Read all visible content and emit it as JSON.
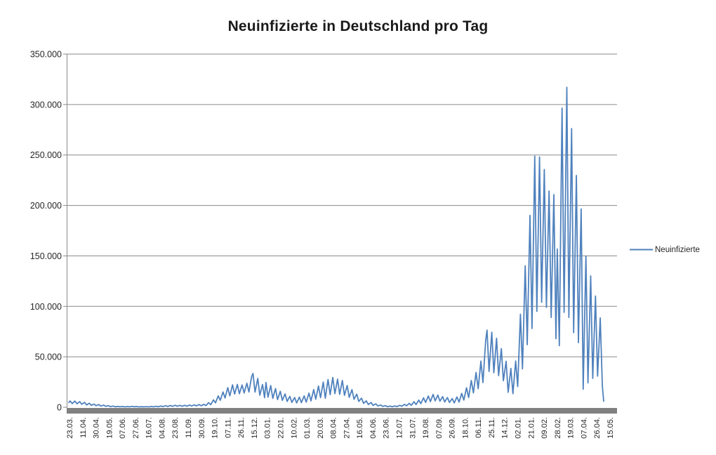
{
  "title": "Neuinfizierte in Deutschland pro Tag",
  "legend": {
    "label": "Neuinfizierte"
  },
  "colors": {
    "series_line": "#4F81BD",
    "gridline": "#8A8A8A",
    "axis_line": "#8A8A8A",
    "axis_bottom_bar": "#808080",
    "title_text": "#1a1a1a",
    "tick_text": "#262626"
  },
  "chart_data": {
    "type": "line",
    "title": "Neuinfizierte in Deutschland pro Tag",
    "ylim": [
      0,
      350000
    ],
    "grid": "horizontal-only",
    "legend_position": "right-middle",
    "y_axis": {
      "tick_values": [
        0,
        50000,
        100000,
        150000,
        200000,
        250000,
        300000,
        350000
      ],
      "tick_labels": [
        "0",
        "50.000",
        "100.000",
        "150.000",
        "200.000",
        "250.000",
        "300.000",
        "350.000"
      ]
    },
    "x_axis": {
      "tick_labels": [
        "23.03.",
        "11.04.",
        "30.04.",
        "19.05.",
        "07.06.",
        "27.06.",
        "16.07.",
        "04.08.",
        "23.08.",
        "11.09.",
        "30.09.",
        "19.10.",
        "07.11.",
        "26.11.",
        "15.12.",
        "03.01.",
        "22.01.",
        "10.02.",
        "01.03.",
        "20.03.",
        "08.04.",
        "27.04.",
        "16.05.",
        "04.06.",
        "23.06.",
        "12.07.",
        "31.07.",
        "19.08.",
        "07.09.",
        "26.09.",
        "18.10.",
        "06.11.",
        "25.11.",
        "14.12.",
        "02.01.",
        "21.01.",
        "09.02.",
        "28.02.",
        "19.03.",
        "07.04.",
        "26.04.",
        "15.05."
      ],
      "first_category": "23.03.",
      "last_category": "15.05.",
      "span_days": 784
    },
    "sampling": "irregular ~3-4 day envelope samples (weekly peaks and troughs); first number = day offset from 23.03.2020, second = daily new infections",
    "series": [
      {
        "name": "Neuinfizierte",
        "color": "#4F81BD",
        "points_day_value": [
          [
            0,
            4700
          ],
          [
            2,
            6200
          ],
          [
            5,
            3600
          ],
          [
            9,
            6100
          ],
          [
            12,
            3400
          ],
          [
            16,
            5600
          ],
          [
            19,
            2900
          ],
          [
            23,
            4900
          ],
          [
            26,
            2300
          ],
          [
            30,
            4000
          ],
          [
            33,
            1900
          ],
          [
            37,
            3200
          ],
          [
            40,
            1500
          ],
          [
            44,
            2700
          ],
          [
            47,
            1200
          ],
          [
            51,
            2100
          ],
          [
            54,
            950
          ],
          [
            58,
            1600
          ],
          [
            61,
            650
          ],
          [
            65,
            1150
          ],
          [
            68,
            520
          ],
          [
            72,
            850
          ],
          [
            75,
            420
          ],
          [
            79,
            780
          ],
          [
            82,
            380
          ],
          [
            86,
            720
          ],
          [
            89,
            420
          ],
          [
            93,
            880
          ],
          [
            96,
            460
          ],
          [
            100,
            700
          ],
          [
            103,
            360
          ],
          [
            107,
            560
          ],
          [
            110,
            320
          ],
          [
            114,
            620
          ],
          [
            117,
            380
          ],
          [
            121,
            780
          ],
          [
            124,
            420
          ],
          [
            128,
            950
          ],
          [
            131,
            520
          ],
          [
            135,
            1250
          ],
          [
            138,
            680
          ],
          [
            142,
            1500
          ],
          [
            145,
            780
          ],
          [
            149,
            1750
          ],
          [
            152,
            920
          ],
          [
            156,
            1950
          ],
          [
            159,
            1020
          ],
          [
            163,
            1850
          ],
          [
            166,
            970
          ],
          [
            170,
            1950
          ],
          [
            173,
            1050
          ],
          [
            177,
            2250
          ],
          [
            180,
            1250
          ],
          [
            184,
            2350
          ],
          [
            187,
            1350
          ],
          [
            191,
            2650
          ],
          [
            194,
            1450
          ],
          [
            198,
            2950
          ],
          [
            201,
            1700
          ],
          [
            205,
            4600
          ],
          [
            208,
            2600
          ],
          [
            212,
            7300
          ],
          [
            215,
            4400
          ],
          [
            219,
            11300
          ],
          [
            222,
            6900
          ],
          [
            226,
            15200
          ],
          [
            229,
            9200
          ],
          [
            233,
            19400
          ],
          [
            236,
            11300
          ],
          [
            240,
            22200
          ],
          [
            243,
            13100
          ],
          [
            247,
            22600
          ],
          [
            250,
            13400
          ],
          [
            254,
            22050
          ],
          [
            257,
            14200
          ],
          [
            261,
            23700
          ],
          [
            264,
            15100
          ],
          [
            268,
            30500
          ],
          [
            270,
            33500
          ],
          [
            273,
            15000
          ],
          [
            277,
            28500
          ],
          [
            280,
            12000
          ],
          [
            284,
            22500
          ],
          [
            287,
            9500
          ],
          [
            289,
            24500
          ],
          [
            292,
            10000
          ],
          [
            296,
            21500
          ],
          [
            299,
            8800
          ],
          [
            303,
            18500
          ],
          [
            306,
            7600
          ],
          [
            310,
            15800
          ],
          [
            313,
            6800
          ],
          [
            317,
            13200
          ],
          [
            320,
            5800
          ],
          [
            324,
            10800
          ],
          [
            327,
            4800
          ],
          [
            331,
            9700
          ],
          [
            334,
            4300
          ],
          [
            338,
            10000
          ],
          [
            341,
            4600
          ],
          [
            345,
            11300
          ],
          [
            348,
            5100
          ],
          [
            352,
            14000
          ],
          [
            355,
            6300
          ],
          [
            359,
            17500
          ],
          [
            362,
            7900
          ],
          [
            366,
            21000
          ],
          [
            369,
            9500
          ],
          [
            373,
            25000
          ],
          [
            376,
            9000
          ],
          [
            380,
            27500
          ],
          [
            383,
            12500
          ],
          [
            387,
            29500
          ],
          [
            390,
            13500
          ],
          [
            394,
            27800
          ],
          [
            397,
            12800
          ],
          [
            401,
            26500
          ],
          [
            404,
            11800
          ],
          [
            408,
            21500
          ],
          [
            411,
            9800
          ],
          [
            415,
            17500
          ],
          [
            418,
            7900
          ],
          [
            422,
            13000
          ],
          [
            425,
            5800
          ],
          [
            429,
            9000
          ],
          [
            432,
            3900
          ],
          [
            436,
            6300
          ],
          [
            439,
            2700
          ],
          [
            443,
            4700
          ],
          [
            446,
            1900
          ],
          [
            450,
            3400
          ],
          [
            453,
            1300
          ],
          [
            457,
            2200
          ],
          [
            460,
            900
          ],
          [
            464,
            1500
          ],
          [
            467,
            640
          ],
          [
            471,
            1100
          ],
          [
            474,
            540
          ],
          [
            478,
            1300
          ],
          [
            481,
            640
          ],
          [
            485,
            1900
          ],
          [
            488,
            950
          ],
          [
            492,
            2900
          ],
          [
            495,
            1450
          ],
          [
            499,
            3900
          ],
          [
            502,
            1950
          ],
          [
            506,
            5400
          ],
          [
            509,
            2700
          ],
          [
            513,
            7100
          ],
          [
            516,
            3600
          ],
          [
            520,
            9300
          ],
          [
            523,
            4700
          ],
          [
            527,
            11200
          ],
          [
            530,
            5600
          ],
          [
            534,
            12700
          ],
          [
            537,
            6300
          ],
          [
            541,
            12100
          ],
          [
            544,
            6000
          ],
          [
            548,
            10600
          ],
          [
            551,
            5300
          ],
          [
            555,
            9600
          ],
          [
            558,
            4800
          ],
          [
            562,
            8600
          ],
          [
            565,
            4300
          ],
          [
            569,
            10200
          ],
          [
            572,
            5100
          ],
          [
            576,
            13700
          ],
          [
            579,
            7100
          ],
          [
            583,
            19300
          ],
          [
            586,
            9700
          ],
          [
            590,
            26500
          ],
          [
            593,
            14200
          ],
          [
            597,
            34500
          ],
          [
            600,
            18400
          ],
          [
            604,
            45700
          ],
          [
            607,
            24500
          ],
          [
            611,
            66000
          ],
          [
            613,
            76400
          ],
          [
            616,
            35500
          ],
          [
            620,
            74300
          ],
          [
            623,
            34200
          ],
          [
            627,
            68300
          ],
          [
            630,
            31400
          ],
          [
            634,
            58100
          ],
          [
            637,
            26300
          ],
          [
            641,
            45600
          ],
          [
            644,
            14800
          ],
          [
            648,
            38500
          ],
          [
            651,
            13400
          ],
          [
            655,
            45800
          ],
          [
            658,
            20500
          ],
          [
            662,
            92200
          ],
          [
            665,
            38000
          ],
          [
            669,
            140200
          ],
          [
            672,
            62000
          ],
          [
            676,
            190100
          ],
          [
            679,
            78000
          ],
          [
            683,
            248800
          ],
          [
            686,
            95000
          ],
          [
            690,
            247900
          ],
          [
            693,
            104000
          ],
          [
            697,
            235600
          ],
          [
            700,
            99000
          ],
          [
            704,
            214200
          ],
          [
            707,
            89000
          ],
          [
            711,
            210700
          ],
          [
            714,
            68000
          ],
          [
            716,
            156800
          ],
          [
            719,
            61000
          ],
          [
            723,
            296500
          ],
          [
            726,
            94000
          ],
          [
            730,
            317000
          ],
          [
            733,
            89000
          ],
          [
            737,
            276100
          ],
          [
            740,
            74000
          ],
          [
            744,
            229700
          ],
          [
            747,
            64000
          ],
          [
            751,
            196500
          ],
          [
            754,
            17900
          ],
          [
            758,
            149800
          ],
          [
            761,
            24200
          ],
          [
            765,
            130100
          ],
          [
            768,
            28700
          ],
          [
            772,
            110200
          ],
          [
            775,
            30800
          ],
          [
            779,
            88500
          ],
          [
            782,
            21300
          ],
          [
            784,
            5900
          ]
        ]
      }
    ]
  }
}
